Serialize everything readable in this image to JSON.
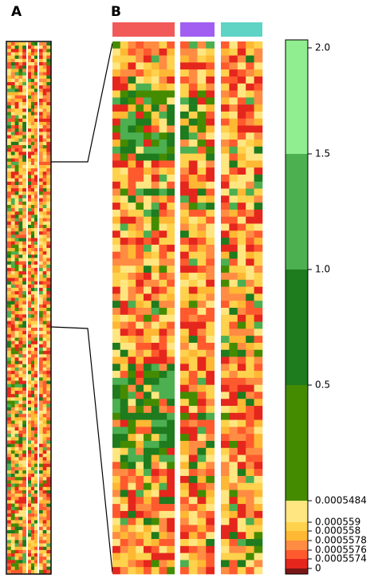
{
  "chart_data": {
    "type": "heatmap",
    "panel_labels": [
      "A",
      "B"
    ],
    "group_colors": [
      "#f25a5a",
      "#a15ef0",
      "#5fd3c4"
    ],
    "colorbar": {
      "colors": [
        "#90ee90",
        "#4caf50",
        "#1e7b1e",
        "#458b00",
        "#ffe680",
        "#ffd24d",
        "#ffb833",
        "#ff8c42",
        "#ff5a2e",
        "#e5261d",
        "#7a1616"
      ],
      "ticks": [
        {
          "value": 2,
          "label": "2.0"
        },
        1.5,
        {
          "value": 1,
          "label": "1.0"
        },
        0.5,
        0.0005484,
        0.000559,
        0.000558,
        0.0005578,
        0.0005576,
        0.0005574,
        0
      ]
    }
  }
}
